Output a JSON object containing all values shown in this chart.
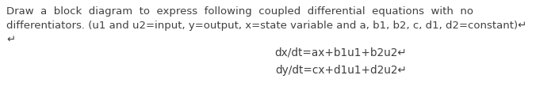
{
  "line1": "Draw  a  block  diagram  to  express  following  coupled  differential  equations  with  no",
  "line2": "differentiators. (u1 and u2=input, y=output, x=state variable and a, b1, b2, c, d1, d2=constant)↵",
  "line3": "↵",
  "eq1": "dx/dt=ax+b1u1+b2u2↵",
  "eq2": "dy/dt=cx+d1u1+d2u2↵",
  "bg_color": "#ffffff",
  "text_color": "#404040",
  "font_size_body": 9.5,
  "font_size_eq": 9.8,
  "fig_width": 7.0,
  "fig_height": 1.19,
  "dpi": 100
}
